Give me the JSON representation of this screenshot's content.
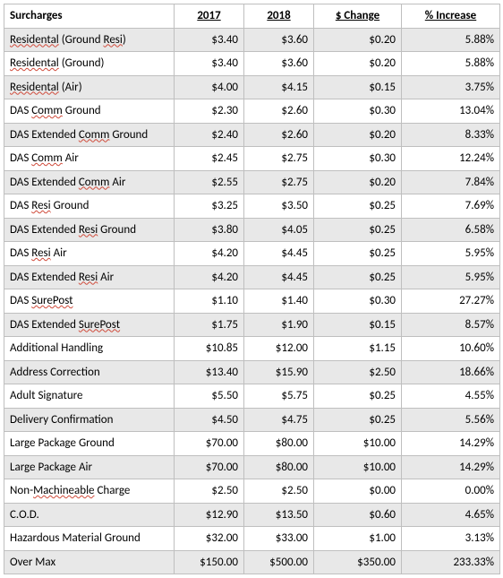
{
  "table": {
    "columns": [
      "Surcharges",
      "2017",
      "2018",
      "$ Change",
      "% Increase"
    ],
    "col_align": [
      "left",
      "right",
      "right",
      "right",
      "right"
    ],
    "row_bg_even": "#e8e8e8",
    "row_bg_odd": "#ffffff",
    "border_color": "#bfbfbf",
    "squiggle_color": "#d04a3a",
    "font_family": "Calibri",
    "font_size_pt": 10,
    "rows": [
      {
        "name_parts": [
          "Residental",
          " (Ground ",
          "Resi",
          ")"
        ],
        "sq": [
          true,
          false,
          true,
          false
        ],
        "y2017": "$3.40",
        "y2018": "$3.60",
        "chg": "$0.20",
        "pct": "5.88%"
      },
      {
        "name_parts": [
          "Residental",
          " (Ground)"
        ],
        "sq": [
          true,
          false
        ],
        "y2017": "$3.40",
        "y2018": "$3.60",
        "chg": "$0.20",
        "pct": "5.88%"
      },
      {
        "name_parts": [
          "Residental",
          " (Air)"
        ],
        "sq": [
          true,
          false
        ],
        "y2017": "$4.00",
        "y2018": "$4.15",
        "chg": "$0.15",
        "pct": "3.75%"
      },
      {
        "name_parts": [
          "DAS ",
          "Comm",
          " Ground"
        ],
        "sq": [
          false,
          true,
          false
        ],
        "y2017": "$2.30",
        "y2018": "$2.60",
        "chg": "$0.30",
        "pct": "13.04%"
      },
      {
        "name_parts": [
          "DAS Extended ",
          "Comm",
          " Ground"
        ],
        "sq": [
          false,
          true,
          false
        ],
        "y2017": "$2.40",
        "y2018": "$2.60",
        "chg": "$0.20",
        "pct": "8.33%"
      },
      {
        "name_parts": [
          "DAS ",
          "Comm",
          " Air"
        ],
        "sq": [
          false,
          true,
          false
        ],
        "y2017": "$2.45",
        "y2018": "$2.75",
        "chg": "$0.30",
        "pct": "12.24%"
      },
      {
        "name_parts": [
          "DAS Extended ",
          "Comm",
          " Air"
        ],
        "sq": [
          false,
          true,
          false
        ],
        "y2017": "$2.55",
        "y2018": "$2.75",
        "chg": "$0.20",
        "pct": "7.84%"
      },
      {
        "name_parts": [
          "DAS ",
          "Resi",
          " Ground"
        ],
        "sq": [
          false,
          true,
          false
        ],
        "y2017": "$3.25",
        "y2018": "$3.50",
        "chg": "$0.25",
        "pct": "7.69%"
      },
      {
        "name_parts": [
          "DAS Extended ",
          "Resi",
          " Ground"
        ],
        "sq": [
          false,
          true,
          false
        ],
        "y2017": "$3.80",
        "y2018": "$4.05",
        "chg": "$0.25",
        "pct": "6.58%"
      },
      {
        "name_parts": [
          "DAS ",
          "Resi",
          " Air"
        ],
        "sq": [
          false,
          true,
          false
        ],
        "y2017": "$4.20",
        "y2018": "$4.45",
        "chg": "$0.25",
        "pct": "5.95%"
      },
      {
        "name_parts": [
          "DAS Extended  ",
          "Resi",
          " Air"
        ],
        "sq": [
          false,
          true,
          false
        ],
        "y2017": "$4.20",
        "y2018": "$4.45",
        "chg": "$0.25",
        "pct": "5.95%"
      },
      {
        "name_parts": [
          "DAS ",
          "SurePost"
        ],
        "sq": [
          false,
          true
        ],
        "y2017": "$1.10",
        "y2018": "$1.40",
        "chg": "$0.30",
        "pct": "27.27%"
      },
      {
        "name_parts": [
          "DAS Extended ",
          "SurePost"
        ],
        "sq": [
          false,
          true
        ],
        "y2017": "$1.75",
        "y2018": "$1.90",
        "chg": "$0.15",
        "pct": "8.57%"
      },
      {
        "name_parts": [
          "Additional Handling"
        ],
        "sq": [
          false
        ],
        "y2017": "$10.85",
        "y2018": "$12.00",
        "chg": "$1.15",
        "pct": "10.60%"
      },
      {
        "name_parts": [
          "Address Correction"
        ],
        "sq": [
          false
        ],
        "y2017": "$13.40",
        "y2018": "$15.90",
        "chg": "$2.50",
        "pct": "18.66%"
      },
      {
        "name_parts": [
          "Adult Signature"
        ],
        "sq": [
          false
        ],
        "y2017": "$5.50",
        "y2018": "$5.75",
        "chg": "$0.25",
        "pct": "4.55%"
      },
      {
        "name_parts": [
          "Delivery Confirmation"
        ],
        "sq": [
          false
        ],
        "y2017": "$4.50",
        "y2018": "$4.75",
        "chg": "$0.25",
        "pct": "5.56%"
      },
      {
        "name_parts": [
          "Large Package Ground"
        ],
        "sq": [
          false
        ],
        "y2017": "$70.00",
        "y2018": "$80.00",
        "chg": "$10.00",
        "pct": "14.29%"
      },
      {
        "name_parts": [
          "Large Package Air"
        ],
        "sq": [
          false
        ],
        "y2017": "$70.00",
        "y2018": "$80.00",
        "chg": "$10.00",
        "pct": "14.29%"
      },
      {
        "name_parts": [
          "Non-",
          "Machineable",
          " Charge"
        ],
        "sq": [
          false,
          true,
          false
        ],
        "y2017": "$2.50",
        "y2018": "$2.50",
        "chg": "$0.00",
        "pct": "0.00%"
      },
      {
        "name_parts": [
          "C.O.D."
        ],
        "sq": [
          false
        ],
        "y2017": "$12.90",
        "y2018": "$13.50",
        "chg": "$0.60",
        "pct": "4.65%"
      },
      {
        "name_parts": [
          "Hazardous Material Ground"
        ],
        "sq": [
          false
        ],
        "y2017": "$32.00",
        "y2018": "$33.00",
        "chg": "$1.00",
        "pct": "3.13%"
      },
      {
        "name_parts": [
          "Over Max"
        ],
        "sq": [
          false
        ],
        "y2017": "$150.00",
        "y2018": "$500.00",
        "chg": "$350.00",
        "pct": "233.33%"
      }
    ]
  }
}
